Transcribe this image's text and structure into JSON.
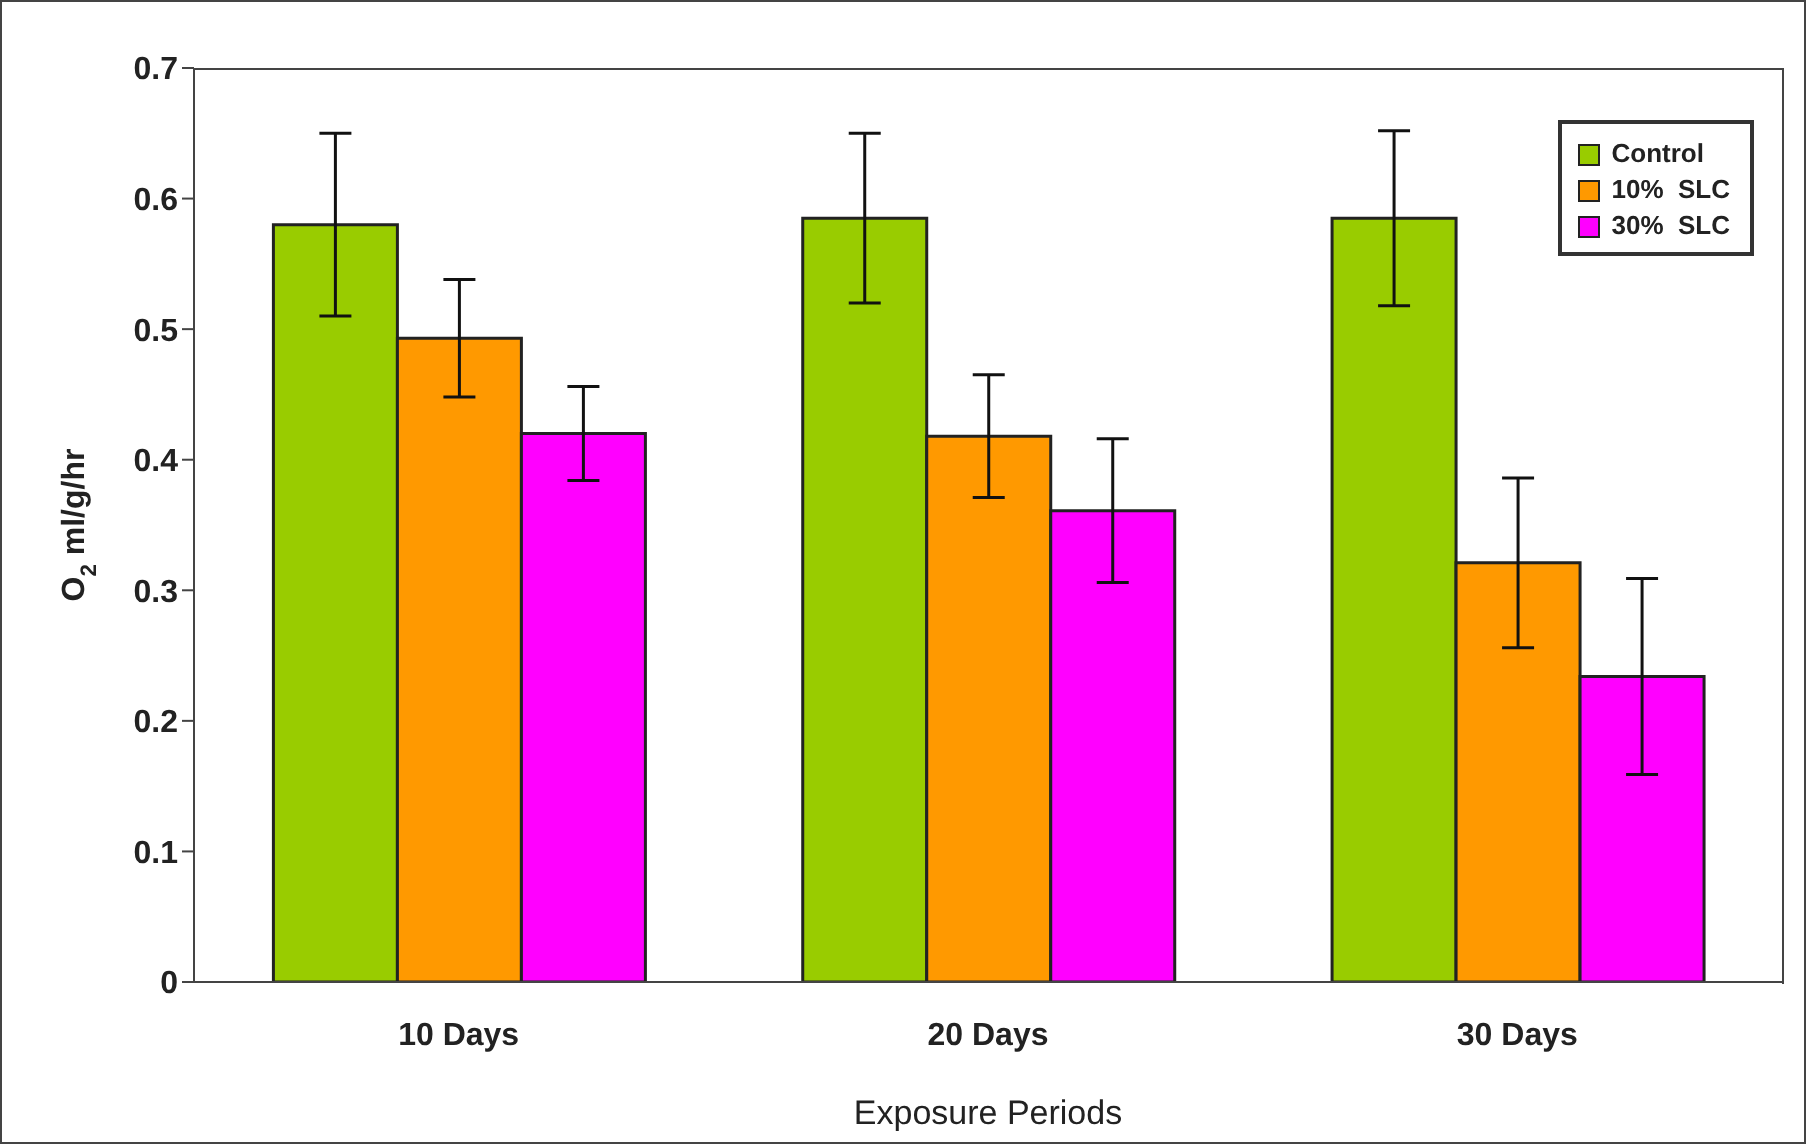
{
  "chart_data": {
    "type": "bar",
    "xlabel": "Exposure Periods",
    "ylabel": "O$_{2}$ ml/g/hr",
    "categories": [
      "10 Days",
      "20 Days",
      "30 Days"
    ],
    "series": [
      {
        "name": "Control",
        "color": "#99cc00",
        "values": [
          0.58,
          0.585,
          0.585
        ],
        "errors": [
          0.07,
          0.065,
          0.067
        ]
      },
      {
        "name": "10%  SLC",
        "color": "#ff9900",
        "values": [
          0.493,
          0.418,
          0.321
        ],
        "errors": [
          0.045,
          0.047,
          0.065
        ]
      },
      {
        "name": "30%  SLC",
        "color": "#ff00ff",
        "values": [
          0.42,
          0.361,
          0.234
        ],
        "errors": [
          0.036,
          0.055,
          0.075
        ]
      }
    ],
    "ylim": [
      0,
      0.7
    ],
    "yticks": [
      0,
      0.1,
      0.2,
      0.3,
      0.4,
      0.5,
      0.6,
      0.7
    ],
    "legend": "top right",
    "grid": false
  }
}
